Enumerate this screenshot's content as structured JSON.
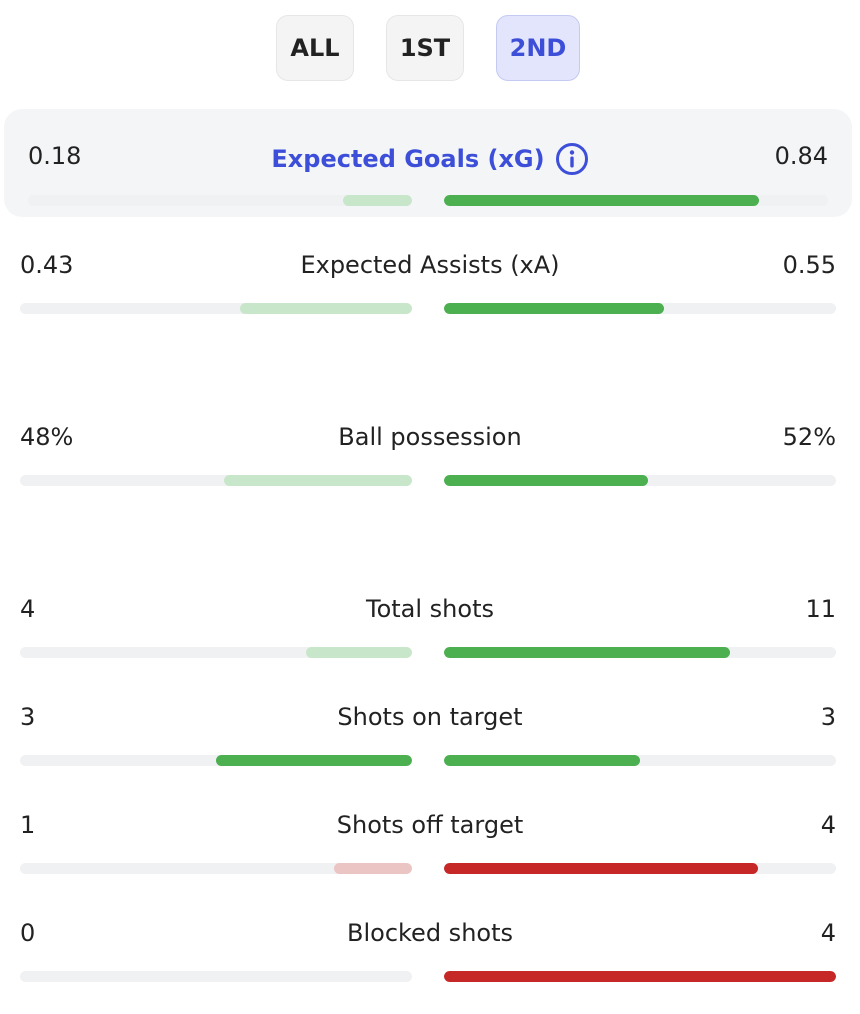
{
  "tabs": [
    {
      "label": "ALL",
      "active": false
    },
    {
      "label": "1ST",
      "active": false
    },
    {
      "label": "2ND",
      "active": true
    }
  ],
  "colors": {
    "accent": "#3d4fd9",
    "green_strong": "#4caf50",
    "green_light": "#c8e6c9",
    "red_strong": "#c62828",
    "red_light": "#ebc4c4",
    "track": "#f0f1f3"
  },
  "stats": [
    {
      "label": "Expected Goals (xG)",
      "left": "0.18",
      "right": "0.84",
      "left_fill": 0.18,
      "right_fill": 0.82,
      "left_color": "green_light",
      "right_color": "green_strong",
      "highlight": true,
      "icon": "info-icon"
    },
    {
      "label": "Expected Assists (xA)",
      "left": "0.43",
      "right": "0.55",
      "left_fill": 0.44,
      "right_fill": 0.56,
      "left_color": "green_light",
      "right_color": "green_strong"
    },
    {
      "label": "Ball possession",
      "left": "48%",
      "right": "52%",
      "left_fill": 0.48,
      "right_fill": 0.52,
      "left_color": "green_light",
      "right_color": "green_strong"
    },
    {
      "label": "Total shots",
      "left": "4",
      "right": "11",
      "left_fill": 0.27,
      "right_fill": 0.73,
      "left_color": "green_light",
      "right_color": "green_strong"
    },
    {
      "label": "Shots on target",
      "left": "3",
      "right": "3",
      "left_fill": 0.5,
      "right_fill": 0.5,
      "left_color": "green_strong",
      "right_color": "green_strong"
    },
    {
      "label": "Shots off target",
      "left": "1",
      "right": "4",
      "left_fill": 0.2,
      "right_fill": 0.8,
      "left_color": "red_light",
      "right_color": "red_strong"
    },
    {
      "label": "Blocked shots",
      "left": "0",
      "right": "4",
      "left_fill": 0.0,
      "right_fill": 1.0,
      "left_color": "red_light",
      "right_color": "red_strong"
    }
  ]
}
